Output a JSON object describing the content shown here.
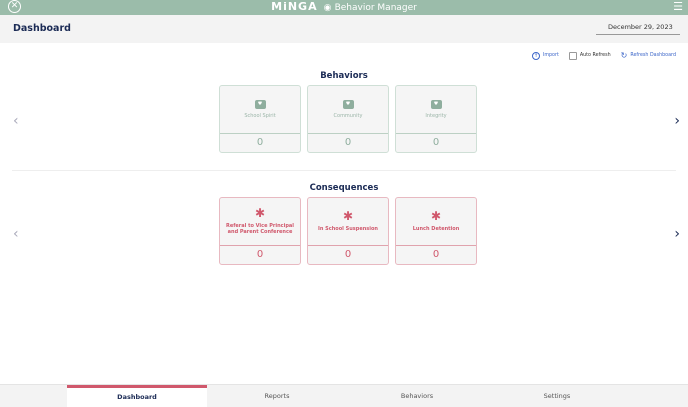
{
  "topbar": {
    "brand": "MiNGA",
    "app_title": "Behavior Manager"
  },
  "header": {
    "title": "Dashboard",
    "date": "December 29, 2023"
  },
  "tools": {
    "import": "Import",
    "auto_refresh": "Auto Refresh",
    "refresh": "Refresh Dashboard"
  },
  "behaviors": {
    "title": "Behaviors",
    "cards": [
      {
        "label": "School Spirit",
        "value": "0"
      },
      {
        "label": "Community",
        "value": "0"
      },
      {
        "label": "Integrity",
        "value": "0"
      }
    ]
  },
  "consequences": {
    "title": "Consequences",
    "cards": [
      {
        "label": "Referal to Vice Principal and Parent Conference",
        "value": "0"
      },
      {
        "label": "In School Suspension",
        "value": "0"
      },
      {
        "label": "Lunch Detention",
        "value": "0"
      }
    ]
  },
  "tabs": [
    {
      "label": "Dashboard",
      "active": true
    },
    {
      "label": "Reports"
    },
    {
      "label": "Behaviors"
    },
    {
      "label": "Settings"
    }
  ],
  "colors": {
    "topbar": "#9bbcaa",
    "behavior": "#8fae9e",
    "consequence": "#d0586c",
    "tab_active": "#d0586c"
  }
}
